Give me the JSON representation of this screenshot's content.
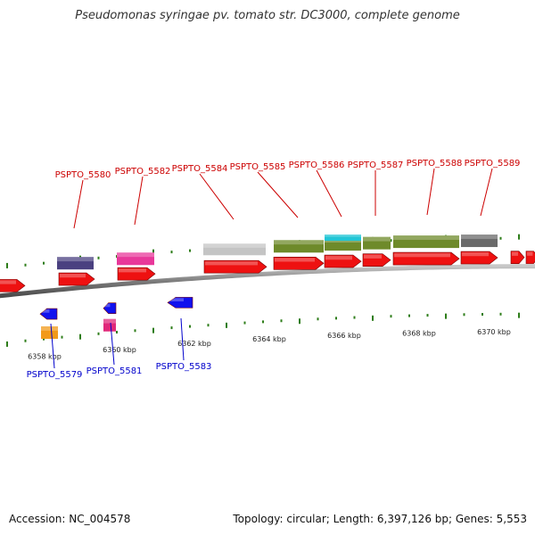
{
  "title": "Pseudomonas syringae pv. tomato str. DC3000, complete genome",
  "accession_label": "Accession: NC_004578",
  "topology_label": "Topology: circular; Length: 6,397,126 bp; Genes: 5,553",
  "scale_ticks": [
    {
      "kbp": 6358,
      "label": "6358 kbp"
    },
    {
      "kbp": 6360,
      "label": "6360 kbp"
    },
    {
      "kbp": 6362,
      "label": "6362 kbp"
    },
    {
      "kbp": 6364,
      "label": "6364 kbp"
    },
    {
      "kbp": 6366,
      "label": "6366 kbp"
    },
    {
      "kbp": 6368,
      "label": "6368 kbp"
    },
    {
      "kbp": 6370,
      "label": "6370 kbp"
    }
  ],
  "colors": {
    "gene_forward": "#ee1111",
    "gene_reverse": "#1111ee",
    "backbone": "#8a8a8a",
    "tick": "#2e7d1a",
    "label_forward": "#cc0000",
    "label_reverse": "#0000cc",
    "cog_olive": "#6e8a2a",
    "cog_cyan": "#22c6d6",
    "cog_navy": "#4a4080",
    "cog_magenta": "#e8389a",
    "cog_gray_light": "#c4c4c4",
    "cog_gray_dark": "#6a6a6a",
    "cog_orange": "#f29a1a",
    "cog_pink": "#e0287a"
  },
  "forward_labels": [
    {
      "id": "PSPTO_5580"
    },
    {
      "id": "PSPTO_5582"
    },
    {
      "id": "PSPTO_5584"
    },
    {
      "id": "PSPTO_5585"
    },
    {
      "id": "PSPTO_5586"
    },
    {
      "id": "PSPTO_5587"
    },
    {
      "id": "PSPTO_5588"
    },
    {
      "id": "PSPTO_5589"
    }
  ],
  "reverse_labels": [
    {
      "id": "PSPTO_5579"
    },
    {
      "id": "PSPTO_5581"
    },
    {
      "id": "PSPTO_5583"
    }
  ]
}
